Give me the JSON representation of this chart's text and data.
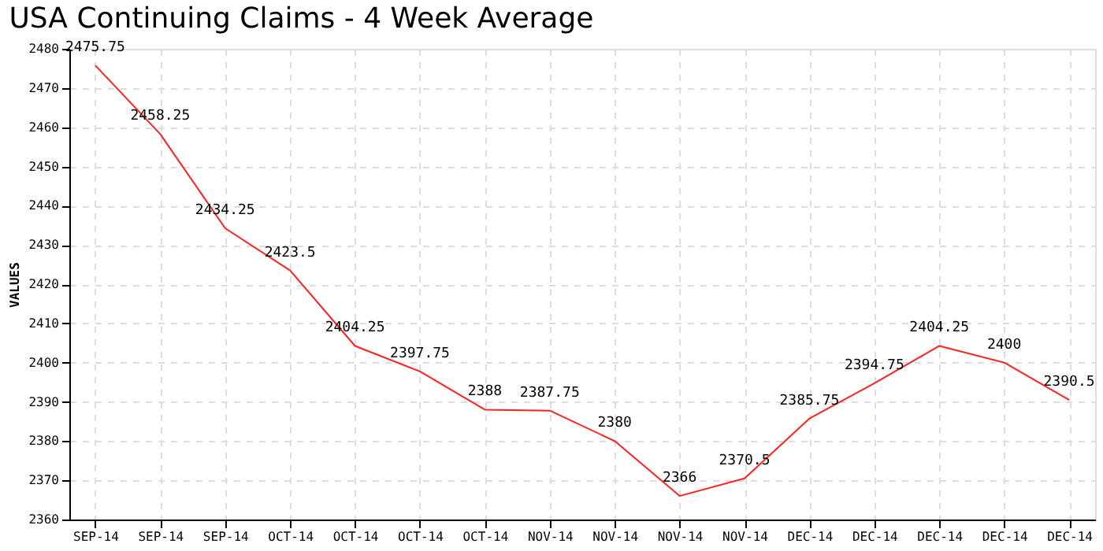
{
  "chart_data": {
    "type": "line",
    "title": "USA Continuing Claims - 4 Week Average",
    "ylabel": "VALUES",
    "categories": [
      "SEP-14",
      "SEP-14",
      "SEP-14",
      "OCT-14",
      "OCT-14",
      "OCT-14",
      "OCT-14",
      "NOV-14",
      "NOV-14",
      "NOV-14",
      "NOV-14",
      "DEC-14",
      "DEC-14",
      "DEC-14",
      "DEC-14",
      "DEC-14"
    ],
    "series": [
      {
        "color": "#ff2020",
        "values": [
          2475.75,
          2458.25,
          2434.25,
          2423.5,
          2404.25,
          2397.75,
          2388,
          2387.75,
          2380,
          2366,
          2370.5,
          2385.75,
          2394.75,
          2404.25,
          2400,
          2390.5
        ]
      }
    ],
    "ylim": [
      2360,
      2480
    ],
    "yticks": [
      2360,
      2370,
      2380,
      2390,
      2400,
      2410,
      2420,
      2430,
      2440,
      2450,
      2460,
      2470,
      2480
    ],
    "grid": true,
    "data_labels": true,
    "marker": "none",
    "line_style": "solid"
  }
}
